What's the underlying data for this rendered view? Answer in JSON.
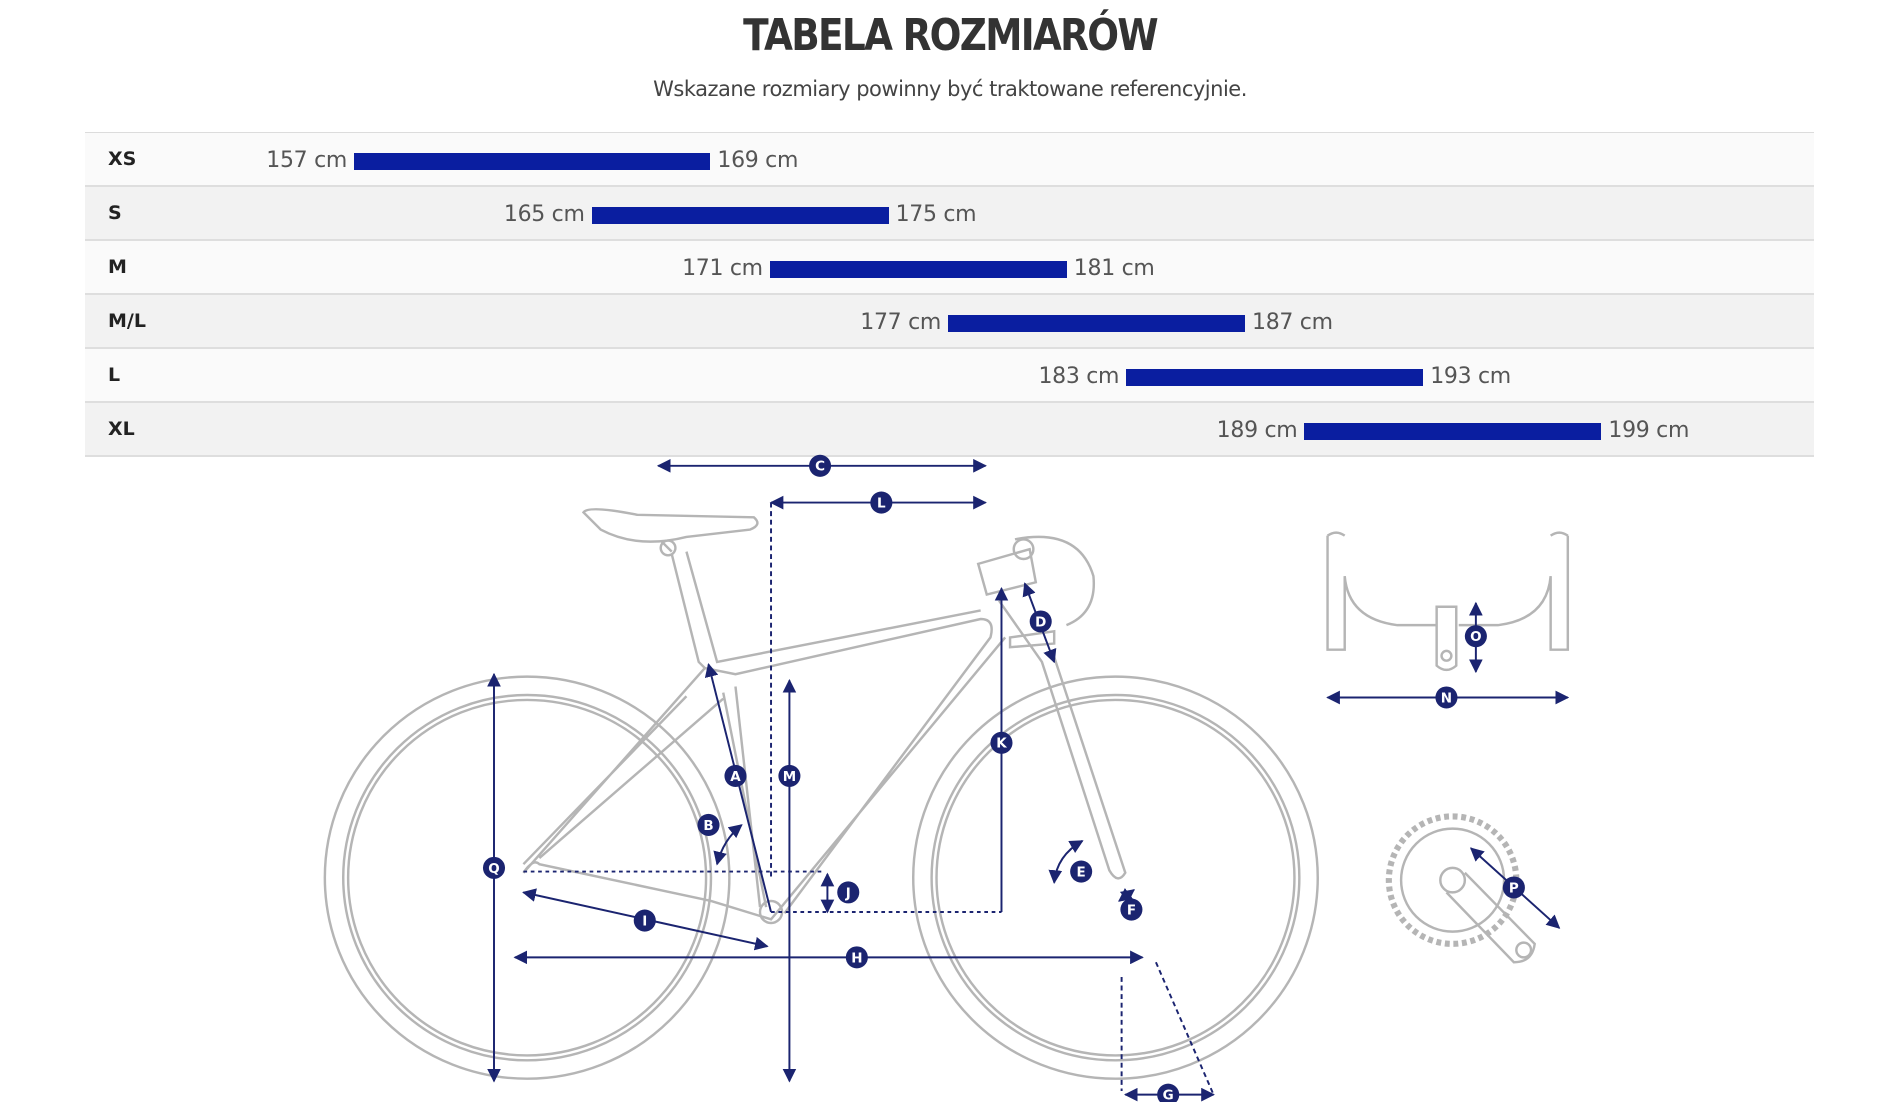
{
  "header": {
    "title": "TABELA ROZMIARÓW",
    "subtitle": "Wskazane rozmiary powinny być traktowane referencyjnie."
  },
  "size_table": {
    "unit": "cm",
    "bar_color": "#0a1ea0",
    "rows": [
      {
        "size": "XS",
        "min": 157,
        "max": 169,
        "min_label": "157 cm",
        "max_label": "169 cm"
      },
      {
        "size": "S",
        "min": 165,
        "max": 175,
        "min_label": "165 cm",
        "max_label": "175 cm"
      },
      {
        "size": "M",
        "min": 171,
        "max": 181,
        "min_label": "171 cm",
        "max_label": "181 cm"
      },
      {
        "size": "M/L",
        "min": 177,
        "max": 187,
        "min_label": "177 cm",
        "max_label": "187 cm"
      },
      {
        "size": "L",
        "min": 183,
        "max": 193,
        "min_label": "183 cm",
        "max_label": "193 cm"
      },
      {
        "size": "XL",
        "min": 189,
        "max": 199,
        "min_label": "189 cm",
        "max_label": "199 cm"
      }
    ]
  },
  "geometry_diagram": {
    "accent_color": "#1b2470",
    "line_color": "#b0b0b0",
    "labels": [
      "A",
      "B",
      "C",
      "D",
      "E",
      "F",
      "G",
      "H",
      "I",
      "J",
      "K",
      "L",
      "M",
      "N",
      "O",
      "P",
      "Q"
    ]
  }
}
